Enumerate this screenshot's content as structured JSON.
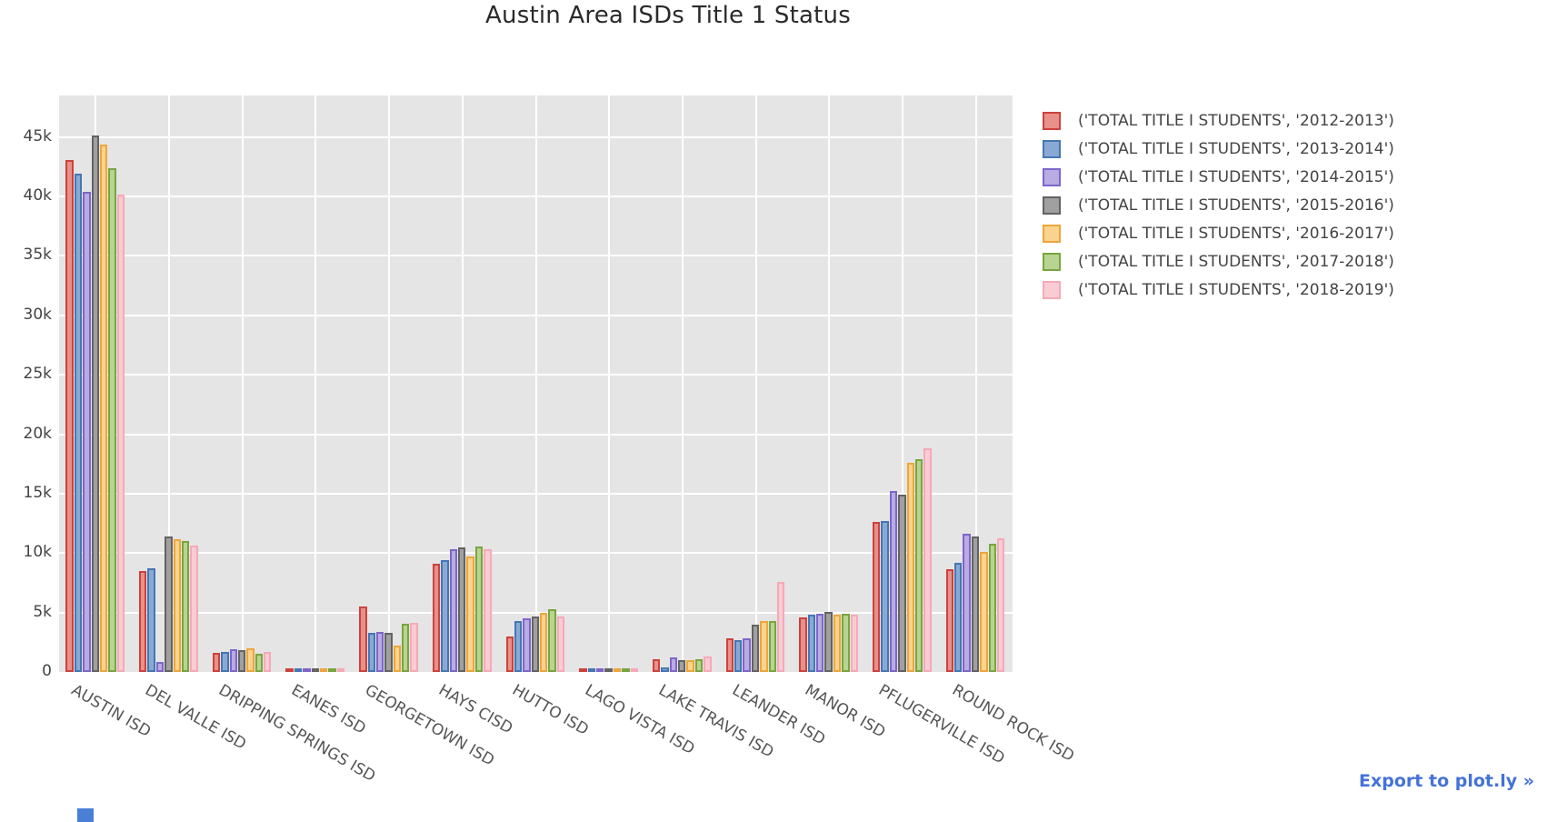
{
  "chart_data": {
    "type": "bar",
    "title": "Austin Area ISDs Title 1 Status",
    "xlabel": "",
    "ylabel": "",
    "ylim": [
      0,
      48500
    ],
    "grid": true,
    "legend_position": "right",
    "plot_bg": "#e5e5e5",
    "y_ticks": [
      "0",
      "5k",
      "10k",
      "15k",
      "20k",
      "25k",
      "30k",
      "35k",
      "40k",
      "45k"
    ],
    "y_tick_values": [
      0,
      5000,
      10000,
      15000,
      20000,
      25000,
      30000,
      35000,
      40000,
      45000
    ],
    "categories": [
      "AUSTIN ISD",
      "DEL VALLE ISD",
      "DRIPPING SPRINGS ISD",
      "EANES ISD",
      "GEORGETOWN ISD",
      "HAYS CISD",
      "HUTTO ISD",
      "LAGO VISTA ISD",
      "LAKE TRAVIS ISD",
      "LEANDER ISD",
      "MANOR ISD",
      "PFLUGERVILLE ISD",
      "ROUND ROCK ISD"
    ],
    "series": [
      {
        "name": "('TOTAL TITLE I STUDENTS', '2012-2013')",
        "fill": "#e8908a",
        "border": "#cc423c",
        "values": [
          43100,
          8500,
          1600,
          150,
          5480,
          9100,
          3000,
          150,
          1050,
          2800,
          4600,
          12650,
          8650
        ]
      },
      {
        "name": "('TOTAL TITLE I STUDENTS', '2013-2014')",
        "fill": "#89a9d4",
        "border": "#4477b3",
        "values": [
          41900,
          8750,
          1700,
          170,
          3300,
          9400,
          4300,
          200,
          400,
          2650,
          4850,
          12700,
          9150
        ]
      },
      {
        "name": "('TOTAL TITLE I STUDENTS', '2014-2015')",
        "fill": "#b9abe3",
        "border": "#7e66c8",
        "values": [
          40400,
          850,
          1900,
          280,
          3400,
          10300,
          4550,
          150,
          1200,
          2800,
          4900,
          15200,
          11600
        ]
      },
      {
        "name": "('TOTAL TITLE I STUDENTS', '2015-2016')",
        "fill": "#a0a0a0",
        "border": "#636363",
        "values": [
          45100,
          11400,
          1850,
          140,
          3300,
          10450,
          4700,
          120,
          1000,
          4000,
          5050,
          14900,
          11400
        ]
      },
      {
        "name": "('TOTAL TITLE I STUDENTS', '2016-2017')",
        "fill": "#fad38e",
        "border": "#eda63c",
        "values": [
          44400,
          11150,
          2000,
          200,
          2250,
          9700,
          5000,
          150,
          1000,
          4300,
          4850,
          17600,
          10100
        ]
      },
      {
        "name": "('TOTAL TITLE I STUDENTS', '2017-2018')",
        "fill": "#b7d490",
        "border": "#79a540",
        "values": [
          42400,
          11050,
          1500,
          160,
          4050,
          10550,
          5250,
          200,
          1100,
          4250,
          4900,
          17900,
          10800
        ]
      },
      {
        "name": "('TOTAL TITLE I STUDENTS', '2018-2019')",
        "fill": "#f9ccd3",
        "border": "#f5a9b8",
        "values": [
          40200,
          10650,
          1650,
          320,
          4100,
          10350,
          4700,
          250,
          1300,
          7600,
          4850,
          18800,
          11250
        ]
      }
    ]
  },
  "export_link": {
    "label": "Export to plot.ly »"
  }
}
